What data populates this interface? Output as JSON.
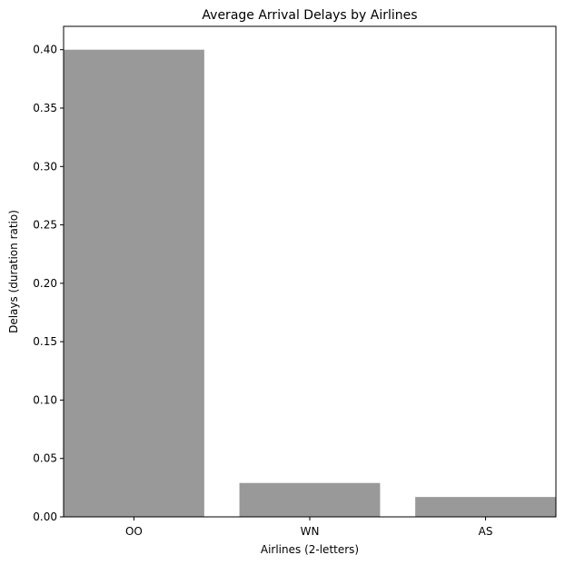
{
  "chart_data": {
    "type": "bar",
    "title": "Average Arrival Delays by Airlines",
    "xlabel": "Airlines (2-letters)",
    "ylabel": "Delays (duration ratio)",
    "categories": [
      "OO",
      "WN",
      "AS"
    ],
    "values": [
      0.4,
      0.029,
      0.017
    ],
    "ylim": [
      0,
      0.42
    ],
    "yticks": [
      0.0,
      0.05,
      0.1,
      0.15,
      0.2,
      0.25,
      0.3,
      0.35,
      0.4
    ],
    "ytick_labels": [
      "0.00",
      "0.05",
      "0.10",
      "0.15",
      "0.20",
      "0.25",
      "0.30",
      "0.35",
      "0.40"
    ],
    "bar_color": "#999999",
    "grid": false,
    "legend": "none"
  }
}
